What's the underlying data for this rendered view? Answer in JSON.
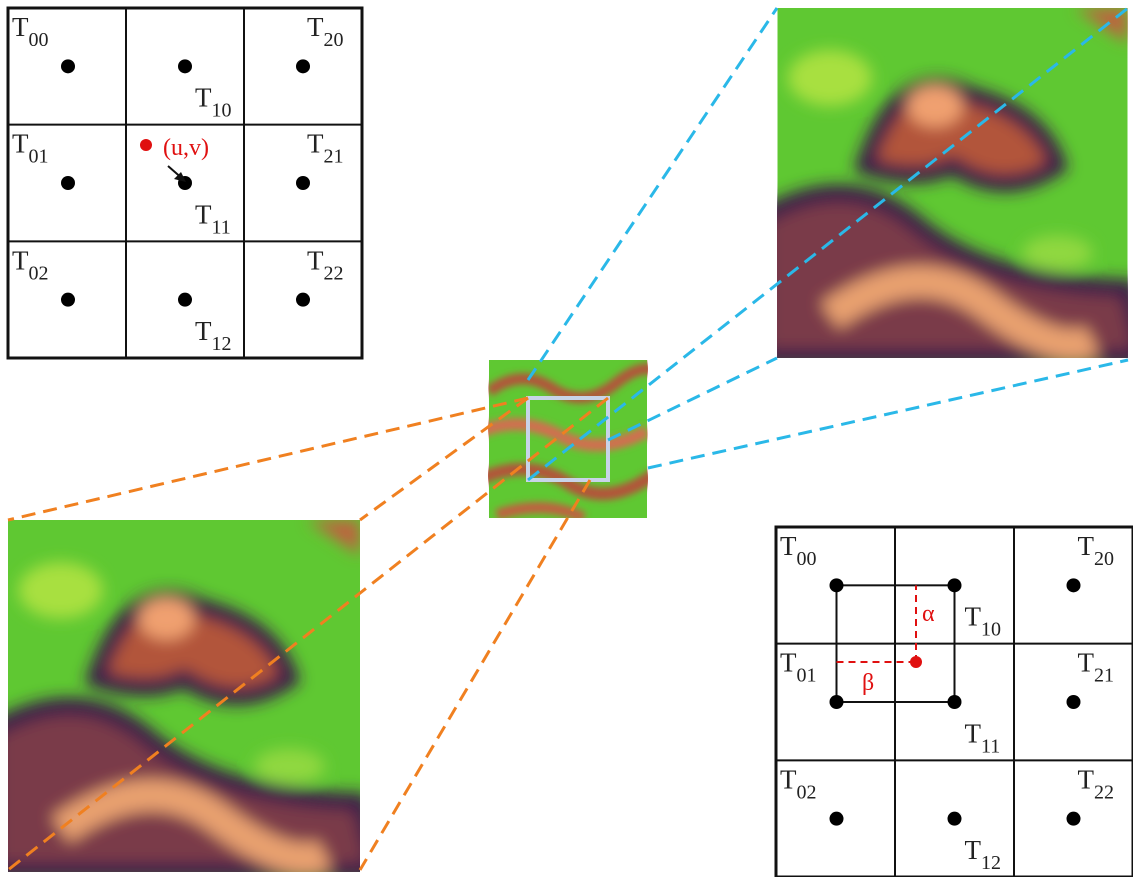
{
  "grids": [
    {
      "cells": [
        {
          "base": "T",
          "sub": "00"
        },
        {
          "base": "T",
          "sub": "10"
        },
        {
          "base": "T",
          "sub": "20"
        },
        {
          "base": "T",
          "sub": "01"
        },
        {
          "base": "T",
          "sub": "11"
        },
        {
          "base": "T",
          "sub": "21"
        },
        {
          "base": "T",
          "sub": "02"
        },
        {
          "base": "T",
          "sub": "12"
        },
        {
          "base": "T",
          "sub": "22"
        }
      ]
    },
    {
      "cells": [
        {
          "base": "T",
          "sub": "00"
        },
        {
          "base": "T",
          "sub": "10"
        },
        {
          "base": "T",
          "sub": "20"
        },
        {
          "base": "T",
          "sub": "01"
        },
        {
          "base": "T",
          "sub": "11"
        },
        {
          "base": "T",
          "sub": "21"
        },
        {
          "base": "T",
          "sub": "02"
        },
        {
          "base": "T",
          "sub": "12"
        },
        {
          "base": "T",
          "sub": "22"
        }
      ]
    }
  ],
  "point_label": "(u,v)",
  "alpha": "α",
  "beta": "β"
}
